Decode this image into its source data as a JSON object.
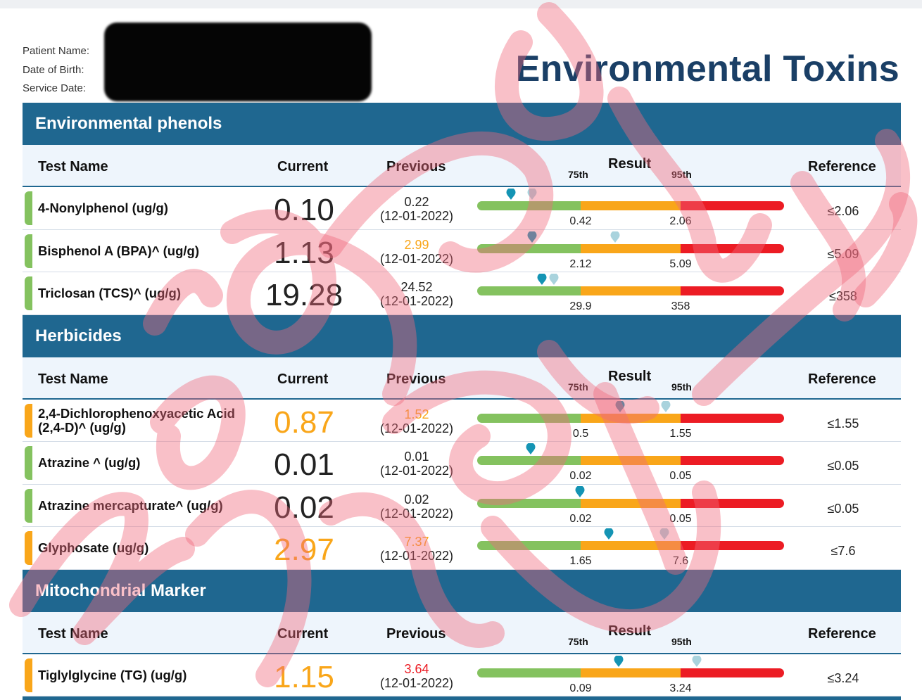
{
  "patient": {
    "name_label": "Patient Name:",
    "dob_label": "Date of Birth:",
    "service_label": "Service Date:"
  },
  "report_title": "Environmental Toxins",
  "columns": {
    "test_name": "Test Name",
    "current": "Current",
    "previous": "Previous",
    "result": "Result",
    "p75": "75th",
    "p95": "95th",
    "reference": "Reference"
  },
  "colors": {
    "header_blue": "#1f6790",
    "normal": "#84c25f",
    "elevated": "#f9a61a",
    "high": "#ec1c24",
    "current_marker": "#1494b4",
    "previous_marker": "#a9d3dd"
  },
  "sections": [
    {
      "title": "Environmental phenols",
      "rows": [
        {
          "name": "4-Nonylphenol (ug/g)",
          "current": "0.10",
          "prev_value": "0.22",
          "prev_date": "(12-01-2022)",
          "status": "normal",
          "prev_status": "normal",
          "p75": "0.42",
          "p95": "2.06",
          "reference": "≤2.06",
          "cur_pos": 0.11,
          "prev_pos": 0.18
        },
        {
          "name": "Bisphenol A (BPA)^ (ug/g)",
          "current": "1.13",
          "prev_value": "2.99",
          "prev_date": "(12-01-2022)",
          "status": "normal",
          "prev_status": "elevated",
          "p75": "2.12",
          "p95": "5.09",
          "reference": "≤5.09",
          "cur_pos": 0.18,
          "prev_pos": 0.45
        },
        {
          "name": "Triclosan (TCS)^ (ug/g)",
          "current": "19.28",
          "prev_value": "24.52",
          "prev_date": "(12-01-2022)",
          "status": "normal",
          "prev_status": "normal",
          "p75": "29.9",
          "p95": "358",
          "reference": "≤358",
          "cur_pos": 0.21,
          "prev_pos": 0.25
        }
      ]
    },
    {
      "title": "Herbicides",
      "rows": [
        {
          "name": "2,4-Dichlorophenoxyacetic Acid (2,4-D)^ (ug/g)",
          "current": "0.87",
          "prev_value": "1.52",
          "prev_date": "(12-01-2022)",
          "status": "elevated",
          "prev_status": "elevated",
          "p75": "0.5",
          "p95": "1.55",
          "reference": "≤1.55",
          "cur_pos": 0.465,
          "prev_pos": 0.615
        },
        {
          "name": "Atrazine ^ (ug/g)",
          "current": "0.01",
          "prev_value": "0.01",
          "prev_date": "(12-01-2022)",
          "status": "normal",
          "prev_status": "normal",
          "p75": "0.02",
          "p95": "0.05",
          "reference": "≤0.05",
          "cur_pos": 0.175,
          "prev_pos": null
        },
        {
          "name": "Atrazine mercapturate^ (ug/g)",
          "current": "0.02",
          "prev_value": "0.02",
          "prev_date": "(12-01-2022)",
          "status": "normal",
          "prev_status": "normal",
          "p75": "0.02",
          "p95": "0.05",
          "reference": "≤0.05",
          "cur_pos": 0.335,
          "prev_pos": null
        },
        {
          "name": "Glyphosate (ug/g)",
          "current": "2.97",
          "prev_value": "7.37",
          "prev_date": "(12-01-2022)",
          "status": "elevated",
          "prev_status": "elevated",
          "p75": "1.65",
          "p95": "7.6",
          "reference": "≤7.6",
          "cur_pos": 0.43,
          "prev_pos": 0.61
        }
      ]
    },
    {
      "title": "Mitochondrial Marker",
      "rows": [
        {
          "name": "Tiglylglycine (TG) (ug/g)",
          "current": "1.15",
          "prev_value": "3.64",
          "prev_date": "(12-01-2022)",
          "status": "elevated",
          "prev_status": "high",
          "p75": "0.09",
          "p95": "3.24",
          "reference": "≤3.24",
          "cur_pos": 0.46,
          "prev_pos": 0.715
        }
      ]
    }
  ]
}
